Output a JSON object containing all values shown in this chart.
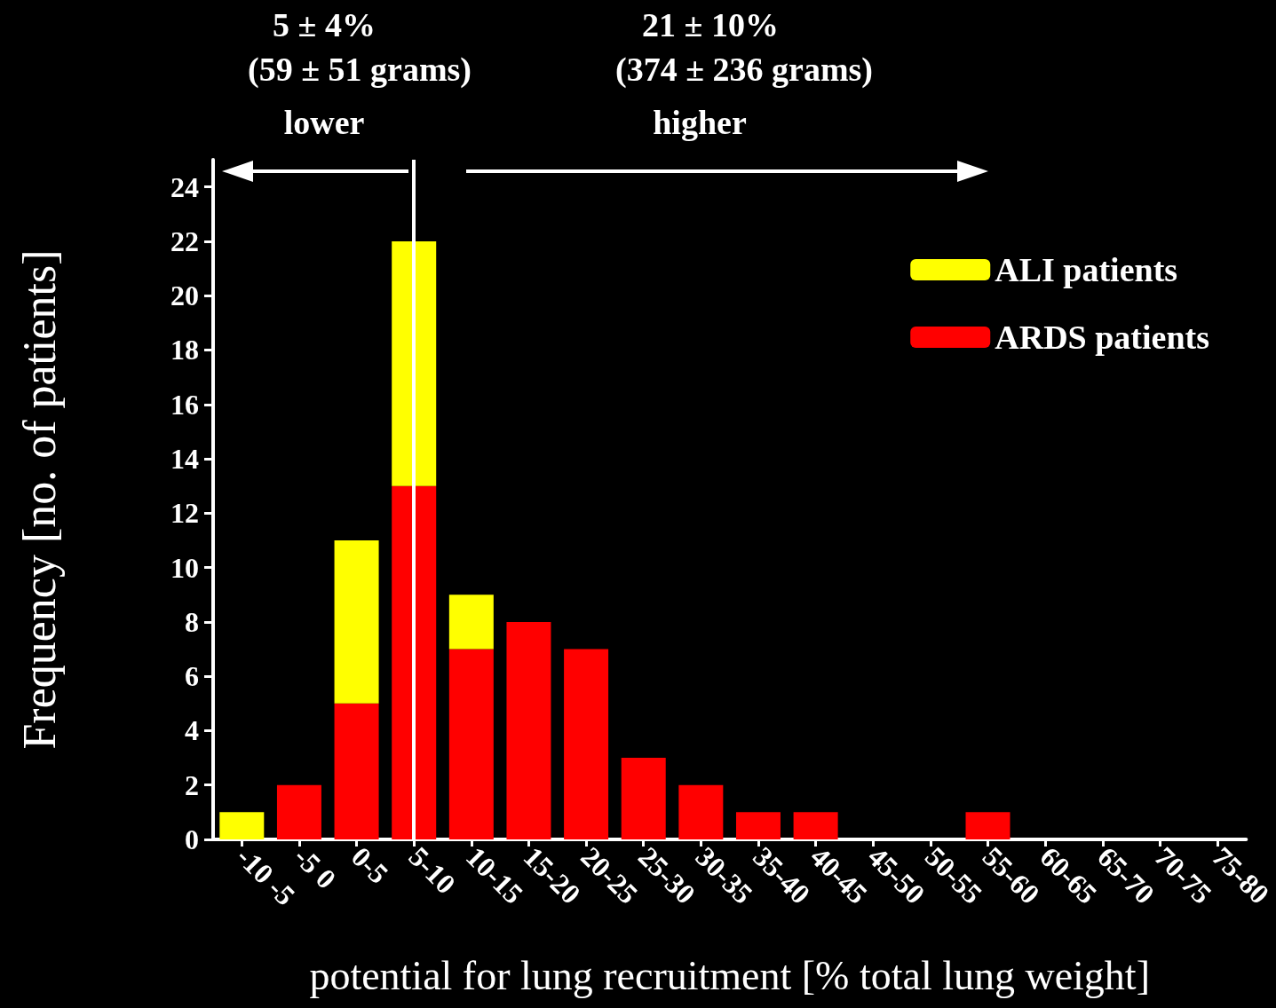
{
  "chart_data": {
    "type": "bar",
    "stacked": true,
    "xlabel": "potential for lung recruitment [% total lung weight]",
    "ylabel": "Frequency [no. of patients]",
    "categories": [
      "-10 -5",
      "-5 0",
      "0-5",
      "5-10",
      "10-15",
      "15-20",
      "20-25",
      "25-30",
      "30-35",
      "35-40",
      "40-45",
      "45-50",
      "50-55",
      "55-60",
      "60-65",
      "65-70",
      "70-75",
      "75-80"
    ],
    "series": [
      {
        "name": "ARDS patients",
        "color": "#ff0000",
        "values": [
          0,
          2,
          5,
          13,
          7,
          8,
          7,
          3,
          2,
          1,
          1,
          0,
          0,
          1,
          0,
          0,
          0,
          0
        ]
      },
      {
        "name": "ALI patients",
        "color": "#ffff00",
        "values": [
          1,
          0,
          6,
          9,
          2,
          0,
          0,
          0,
          0,
          0,
          0,
          0,
          0,
          0,
          0,
          0,
          0,
          0
        ]
      }
    ],
    "ylim": [
      0,
      25
    ],
    "yticks": [
      0,
      2,
      4,
      6,
      8,
      10,
      12,
      14,
      16,
      18,
      20,
      22,
      24
    ],
    "grid": false,
    "legend": "top right",
    "ref_lines": [
      {
        "axis": "x",
        "value": "5-10",
        "color": "#ffffff"
      }
    ],
    "annotations": [
      "5 ± 4%",
      "(59 ± 51 grams)",
      "lower",
      "21 ± 10%",
      "(374 ± 236 grams)",
      "higher"
    ]
  }
}
